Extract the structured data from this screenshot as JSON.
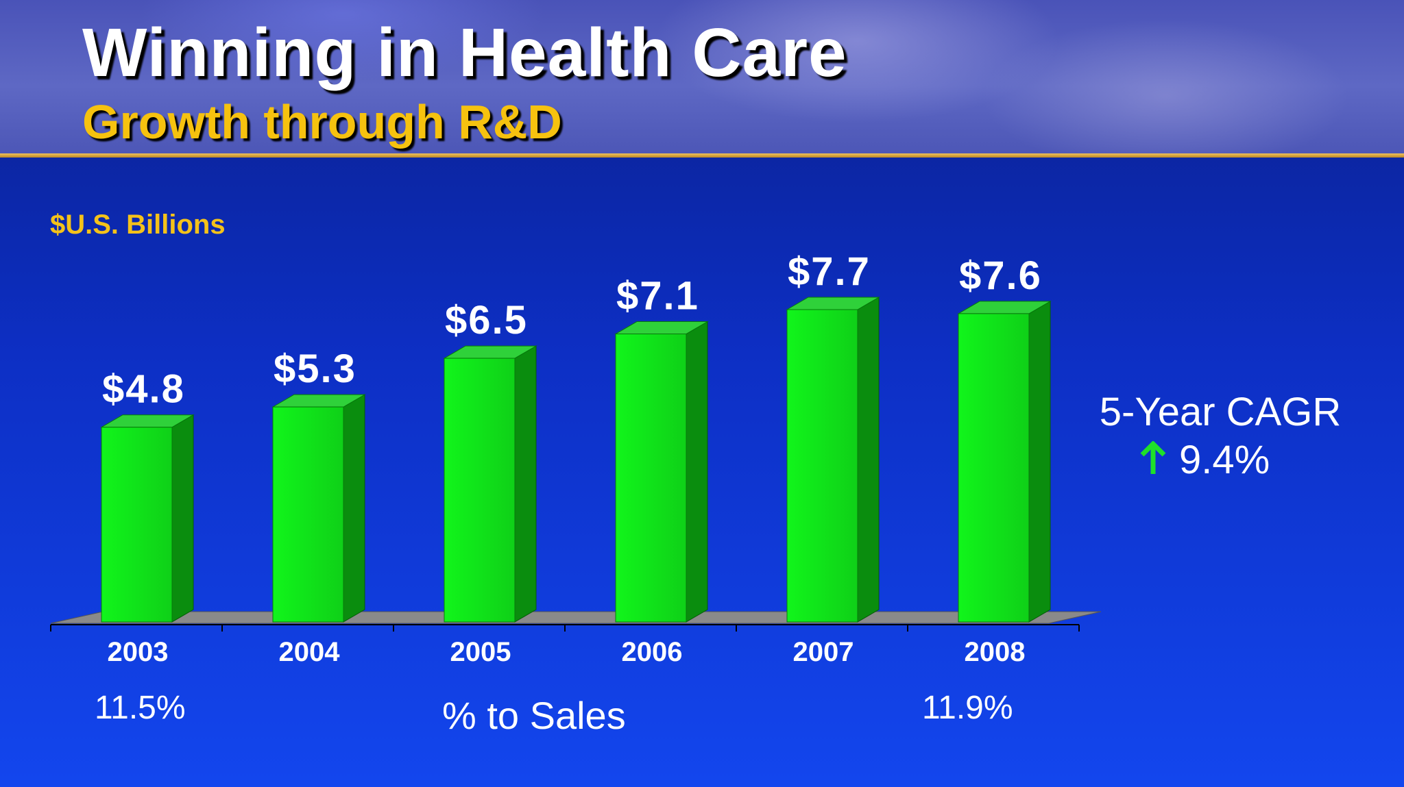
{
  "header": {
    "title": "Winning in Health Care",
    "subtitle": "Growth through R&D"
  },
  "colors": {
    "bar_front": "#11f51b",
    "bar_side": "#0a8d0e",
    "bar_top": "#2fd13a",
    "floor": "#8a8a8a",
    "accent_gold": "#f4c21a",
    "arrow_green": "#1fe02a"
  },
  "chart_data": {
    "type": "bar",
    "title": "Growth through R&D",
    "unit_label": "$U.S. Billions",
    "categories": [
      "2003",
      "2004",
      "2005",
      "2006",
      "2007",
      "2008"
    ],
    "values": [
      4.8,
      5.3,
      6.5,
      7.1,
      7.7,
      7.6
    ],
    "data_labels": [
      "$4.8",
      "$5.3",
      "$6.5",
      "$7.1",
      "$7.7",
      "$7.6"
    ],
    "xlabel": "",
    "ylabel": "",
    "ylim": [
      0,
      7.7
    ],
    "grid": false,
    "legend": "none"
  },
  "annotations": {
    "cagr_label": "5-Year CAGR",
    "cagr_value": "9.4%",
    "cagr_icon": "up-arrow-icon",
    "pct_to_sales_caption": "% to Sales",
    "pct_first": "11.5%",
    "pct_last": "11.9%"
  }
}
